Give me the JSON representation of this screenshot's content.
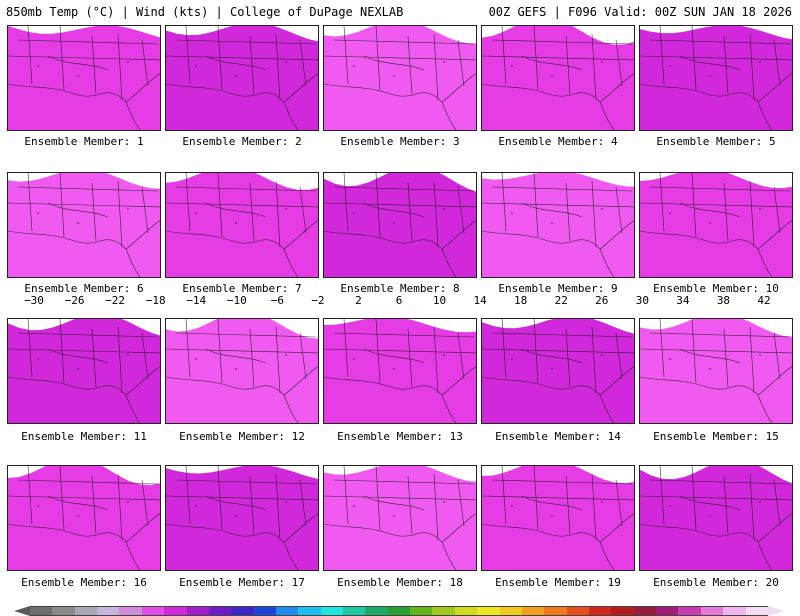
{
  "header": {
    "left_title": "850mb Temp (°C) | Wind (kts) | College of DuPage NEXLAB",
    "right_title": "00Z GEFS | F096 Valid: 00Z SUN JAN 18 2026"
  },
  "members": [
    {
      "label": "Ensemble Member: 1"
    },
    {
      "label": "Ensemble Member: 2"
    },
    {
      "label": "Ensemble Member: 3"
    },
    {
      "label": "Ensemble Member: 4"
    },
    {
      "label": "Ensemble Member: 5"
    },
    {
      "label": "Ensemble Member: 6"
    },
    {
      "label": "Ensemble Member: 7"
    },
    {
      "label": "Ensemble Member: 8"
    },
    {
      "label": "Ensemble Member: 9"
    },
    {
      "label": "Ensemble Member: 10"
    },
    {
      "label": "Ensemble Member: 11"
    },
    {
      "label": "Ensemble Member: 12"
    },
    {
      "label": "Ensemble Member: 13"
    },
    {
      "label": "Ensemble Member: 14"
    },
    {
      "label": "Ensemble Member: 15"
    },
    {
      "label": "Ensemble Member: 16"
    },
    {
      "label": "Ensemble Member: 17"
    },
    {
      "label": "Ensemble Member: 18"
    },
    {
      "label": "Ensemble Member: 19"
    },
    {
      "label": "Ensemble Member: 20"
    }
  ],
  "colorbar": {
    "labels": [
      "−30",
      "−26",
      "−22",
      "−18",
      "−14",
      "−10",
      "−6",
      "−2",
      "2",
      "6",
      "10",
      "14",
      "18",
      "22",
      "26",
      "30",
      "34",
      "38",
      "42"
    ],
    "colors": [
      "#6e6e6e",
      "#8a8a8a",
      "#a8a8b4",
      "#c8b4dc",
      "#d28cdc",
      "#e050e6",
      "#d228dc",
      "#a01ec8",
      "#6e1ec8",
      "#3c28c8",
      "#1e46dc",
      "#1e8cf0",
      "#1ebef0",
      "#1ee6dc",
      "#1ec8a0",
      "#1eaa64",
      "#28a032",
      "#64b41e",
      "#a0c81e",
      "#d2dc1e",
      "#f0e61e",
      "#f0c81e",
      "#f0a01e",
      "#f0781e",
      "#e6501e",
      "#d2281e",
      "#b41e1e",
      "#961e3c",
      "#a01e78",
      "#c83cb4",
      "#e678dc",
      "#f0b4f0",
      "#f5dcf5"
    ],
    "right_arrow_color": "#ecdcf0",
    "left_arrow_color": "#5a5a5a"
  }
}
